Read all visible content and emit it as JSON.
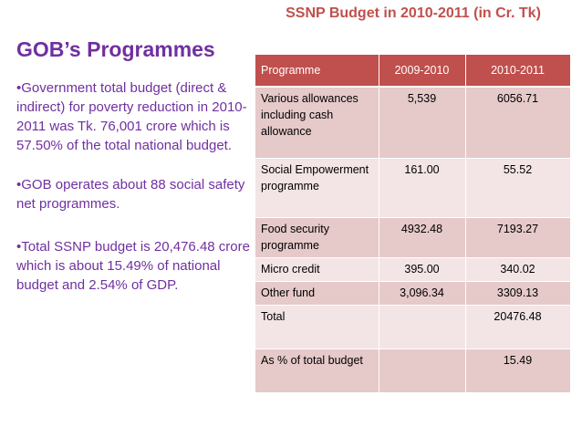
{
  "table_title": "SSNP Budget in 2010-2011 (in Cr. Tk)",
  "left_title": "GOB’s Programmes",
  "bullets": [
    "•Government total budget (direct & indirect) for poverty reduction in 2010-2011 was Tk. 76,001 crore which is 57.50% of the total national budget.",
    "•GOB operates about 88 social safety net programmes.",
    "•Total SSNP budget is 20,476.48 crore which is about 15.49% of national budget and 2.54% of GDP."
  ],
  "table": {
    "headers": [
      "Programme",
      "2009-2010",
      "2010-2011"
    ],
    "rows": [
      [
        "Various allowances including cash allowance",
        "5,539",
        "6056.71"
      ],
      [
        "Social Empowerment programme",
        "161.00",
        "55.52"
      ],
      [
        "Food security programme",
        "4932.48",
        "7193.27"
      ],
      [
        "Micro credit",
        "395.00",
        "340.02"
      ],
      [
        "Other fund",
        "3,096.34",
        "3309.13"
      ],
      [
        "Total",
        "",
        "20476.48"
      ],
      [
        "As % of total budget",
        "",
        "15.49"
      ]
    ]
  },
  "colors": {
    "header": "#c0504d",
    "row_dark": "#e6c9c9",
    "row_light": "#f3e5e5",
    "purple_text": "#7030a0"
  }
}
